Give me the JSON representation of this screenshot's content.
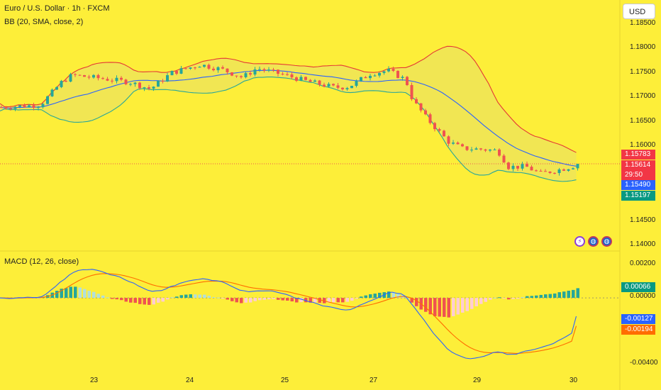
{
  "header": {
    "title": "Euro / U.S. Dollar · 1h · FXCM",
    "indicator": "BB (20, SMA, close, 2)",
    "macd": "MACD (12, 26, close)"
  },
  "currency_button": "USD",
  "price_axis": [
    "1.18500",
    "1.18000",
    "1.17500",
    "1.17000",
    "1.16500",
    "1.16000",
    "1.14500",
    "1.14000"
  ],
  "macd_axis": [
    "0.00200",
    "0.00000",
    "-0.00400"
  ],
  "x_axis": [
    "23",
    "24",
    "25",
    "27",
    "29",
    "30"
  ],
  "price_badges": {
    "bb_upper": "1.15783",
    "last_price": "1.15614",
    "countdown": "29:50",
    "bb_basis": "1.15490",
    "bb_lower": "1.15197"
  },
  "macd_badges": {
    "histogram": "0.00066",
    "macd_line": "-0.00127",
    "signal_line": "-0.00194"
  },
  "icons": [
    "lightning-icon",
    "globe-icon",
    "globe-icon"
  ],
  "colors": {
    "background": "#fdee39",
    "bullish": "#26a69a",
    "bearish": "#ef5350",
    "bb_upper": "#e53935",
    "bb_basis": "#2962ff",
    "bb_lower": "#26a69a",
    "macd_line": "#2962ff",
    "signal_line": "#ff6d00"
  },
  "chart_data": {
    "type": "candlestick",
    "symbol": "Euro / U.S. Dollar",
    "timeframe": "1h",
    "source": "FXCM",
    "x_ticks": [
      "23",
      "24",
      "25",
      "27",
      "29",
      "30"
    ],
    "price_range": [
      1.1385,
      1.1868
    ],
    "macd_range": [
      -0.0045,
      0.0026
    ],
    "close_anchors": [
      {
        "x": 0,
        "close": 1.1685
      },
      {
        "x": 55,
        "close": 1.169
      },
      {
        "x": 85,
        "close": 1.174
      },
      {
        "x": 100,
        "close": 1.1755
      },
      {
        "x": 140,
        "close": 1.1748
      },
      {
        "x": 180,
        "close": 1.174
      },
      {
        "x": 210,
        "close": 1.1725
      },
      {
        "x": 240,
        "close": 1.176
      },
      {
        "x": 280,
        "close": 1.1778
      },
      {
        "x": 310,
        "close": 1.1768
      },
      {
        "x": 340,
        "close": 1.175
      },
      {
        "x": 360,
        "close": 1.177
      },
      {
        "x": 400,
        "close": 1.1755
      },
      {
        "x": 430,
        "close": 1.1742
      },
      {
        "x": 470,
        "close": 1.1728
      },
      {
        "x": 490,
        "close": 1.173
      },
      {
        "x": 520,
        "close": 1.1758
      },
      {
        "x": 545,
        "close": 1.1765
      },
      {
        "x": 570,
        "close": 1.1745
      },
      {
        "x": 580,
        "close": 1.17
      },
      {
        "x": 600,
        "close": 1.166
      },
      {
        "x": 630,
        "close": 1.161
      },
      {
        "x": 650,
        "close": 1.1595
      },
      {
        "x": 680,
        "close": 1.1593
      },
      {
        "x": 700,
        "close": 1.159
      },
      {
        "x": 715,
        "close": 1.1555
      },
      {
        "x": 740,
        "close": 1.1555
      },
      {
        "x": 760,
        "close": 1.154
      },
      {
        "x": 790,
        "close": 1.155
      },
      {
        "x": 818,
        "close": 1.1561
      }
    ],
    "bollinger": {
      "period": 20,
      "stddev": 2,
      "upper_last": 1.15783,
      "basis_last": 1.1549,
      "lower_last": 1.15197
    },
    "last_price": 1.15614,
    "macd": {
      "fast": 12,
      "slow": 26,
      "histogram_last": 0.00066,
      "macd_last": -0.00127,
      "signal_last": -0.00194,
      "macd_min": -0.0042,
      "macd_max": 0.002
    }
  }
}
